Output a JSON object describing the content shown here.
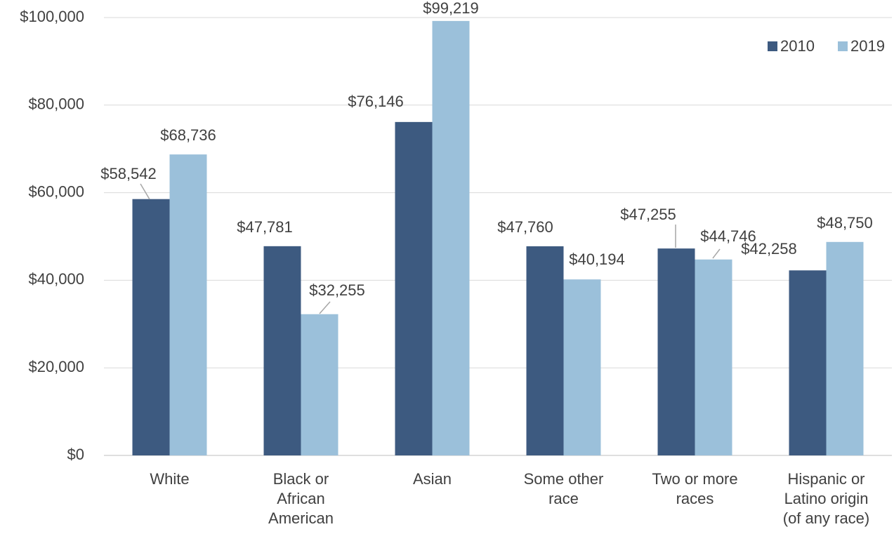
{
  "chart_data": {
    "type": "bar",
    "categories": [
      "White",
      "Black or African American",
      "Asian",
      "Some other race",
      "Two or more races",
      "Hispanic or Latino origin (of any race)"
    ],
    "series": [
      {
        "name": "2010",
        "color": "#3d5a80",
        "values": [
          58542,
          47781,
          76146,
          47760,
          47255,
          42258
        ],
        "value_labels": [
          "$58,542",
          "$47,781",
          "$76,146",
          "$47,760",
          "$47,255",
          "$42,258"
        ]
      },
      {
        "name": "2019",
        "color": "#9bc0da",
        "values": [
          68736,
          32255,
          99219,
          40194,
          44746,
          48750
        ],
        "value_labels": [
          "$68,736",
          "$32,255",
          "$99,219",
          "$40,194",
          "$44,746",
          "$48,750"
        ]
      }
    ],
    "ylim": [
      0,
      100000
    ],
    "yticks": [
      {
        "value": 0,
        "label": "$0"
      },
      {
        "value": 20000,
        "label": "$20,000"
      },
      {
        "value": 40000,
        "label": "$40,000"
      },
      {
        "value": 60000,
        "label": "$60,000"
      },
      {
        "value": 80000,
        "label": "$80,000"
      },
      {
        "value": 100000,
        "label": "$100,000"
      }
    ],
    "grid": true,
    "legend": "top-right"
  }
}
